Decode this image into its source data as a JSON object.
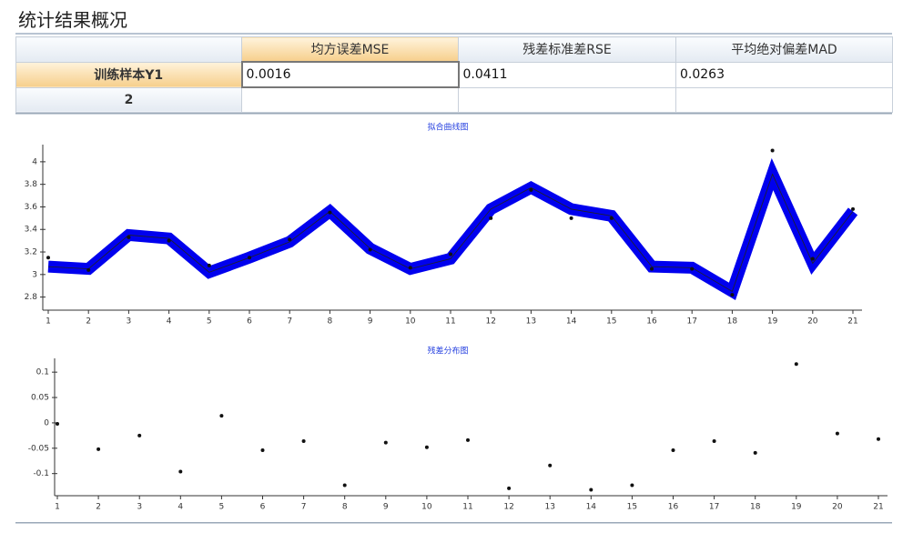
{
  "title": "统计结果概况",
  "table": {
    "columns": [
      "均方误差MSE",
      "残差标准差RSE",
      "平均绝对偏差MAD"
    ],
    "rows": [
      [
        "训练样本Y1",
        "0.0016",
        "0.0411",
        "0.0263"
      ],
      [
        "2"
      ]
    ]
  },
  "chart_data": [
    {
      "type": "line",
      "title": "拟合曲线图",
      "x": [
        1,
        2,
        3,
        4,
        5,
        6,
        7,
        8,
        9,
        10,
        11,
        12,
        13,
        14,
        15,
        16,
        17,
        18,
        19,
        20,
        21
      ],
      "xlim": [
        1,
        21
      ],
      "xticks": [
        1,
        2,
        3,
        4,
        5,
        6,
        7,
        8,
        9,
        10,
        11,
        12,
        13,
        14,
        15,
        16,
        17,
        18,
        19,
        20,
        21
      ],
      "ylim": [
        2.7,
        4.12
      ],
      "yticks": [
        2.8,
        3,
        3.2,
        3.4,
        3.6,
        3.8,
        4
      ],
      "series": [
        {
          "type": "line",
          "color": "#0000ee",
          "values": [
            3.07,
            3.05,
            3.35,
            3.32,
            3.02,
            3.15,
            3.29,
            3.56,
            3.23,
            3.05,
            3.14,
            3.58,
            3.77,
            3.58,
            3.52,
            3.07,
            3.06,
            2.85,
            3.89,
            3.1,
            3.56
          ]
        },
        {
          "type": "scatter",
          "color": "#111111",
          "values": [
            3.15,
            3.04,
            3.33,
            3.3,
            3.08,
            3.15,
            3.31,
            3.55,
            3.22,
            3.06,
            3.18,
            3.5,
            3.75,
            3.5,
            3.5,
            3.05,
            3.05,
            2.82,
            4.1,
            3.14,
            3.58
          ]
        }
      ]
    },
    {
      "type": "scatter",
      "title": "残差分布图",
      "x": [
        1,
        2,
        3,
        4,
        5,
        6,
        7,
        8,
        9,
        10,
        11,
        12,
        13,
        14,
        15,
        16,
        17,
        18,
        19,
        20,
        21
      ],
      "xlim": [
        1,
        21
      ],
      "xticks": [
        1,
        2,
        3,
        4,
        5,
        6,
        7,
        8,
        9,
        10,
        11,
        12,
        13,
        14,
        15,
        16,
        17,
        18,
        19,
        20,
        21
      ],
      "ylim": [
        -0.14,
        0.12
      ],
      "yticks": [
        -0.1,
        -0.05,
        0,
        0.05,
        0.1
      ],
      "color": "#111111",
      "values": [
        -0.002,
        -0.052,
        -0.025,
        -0.096,
        0.014,
        -0.054,
        -0.036,
        -0.123,
        -0.039,
        -0.048,
        -0.034,
        -0.129,
        -0.084,
        -0.132,
        -0.123,
        -0.054,
        -0.036,
        -0.059,
        0.116,
        -0.021,
        -0.032
      ]
    }
  ]
}
